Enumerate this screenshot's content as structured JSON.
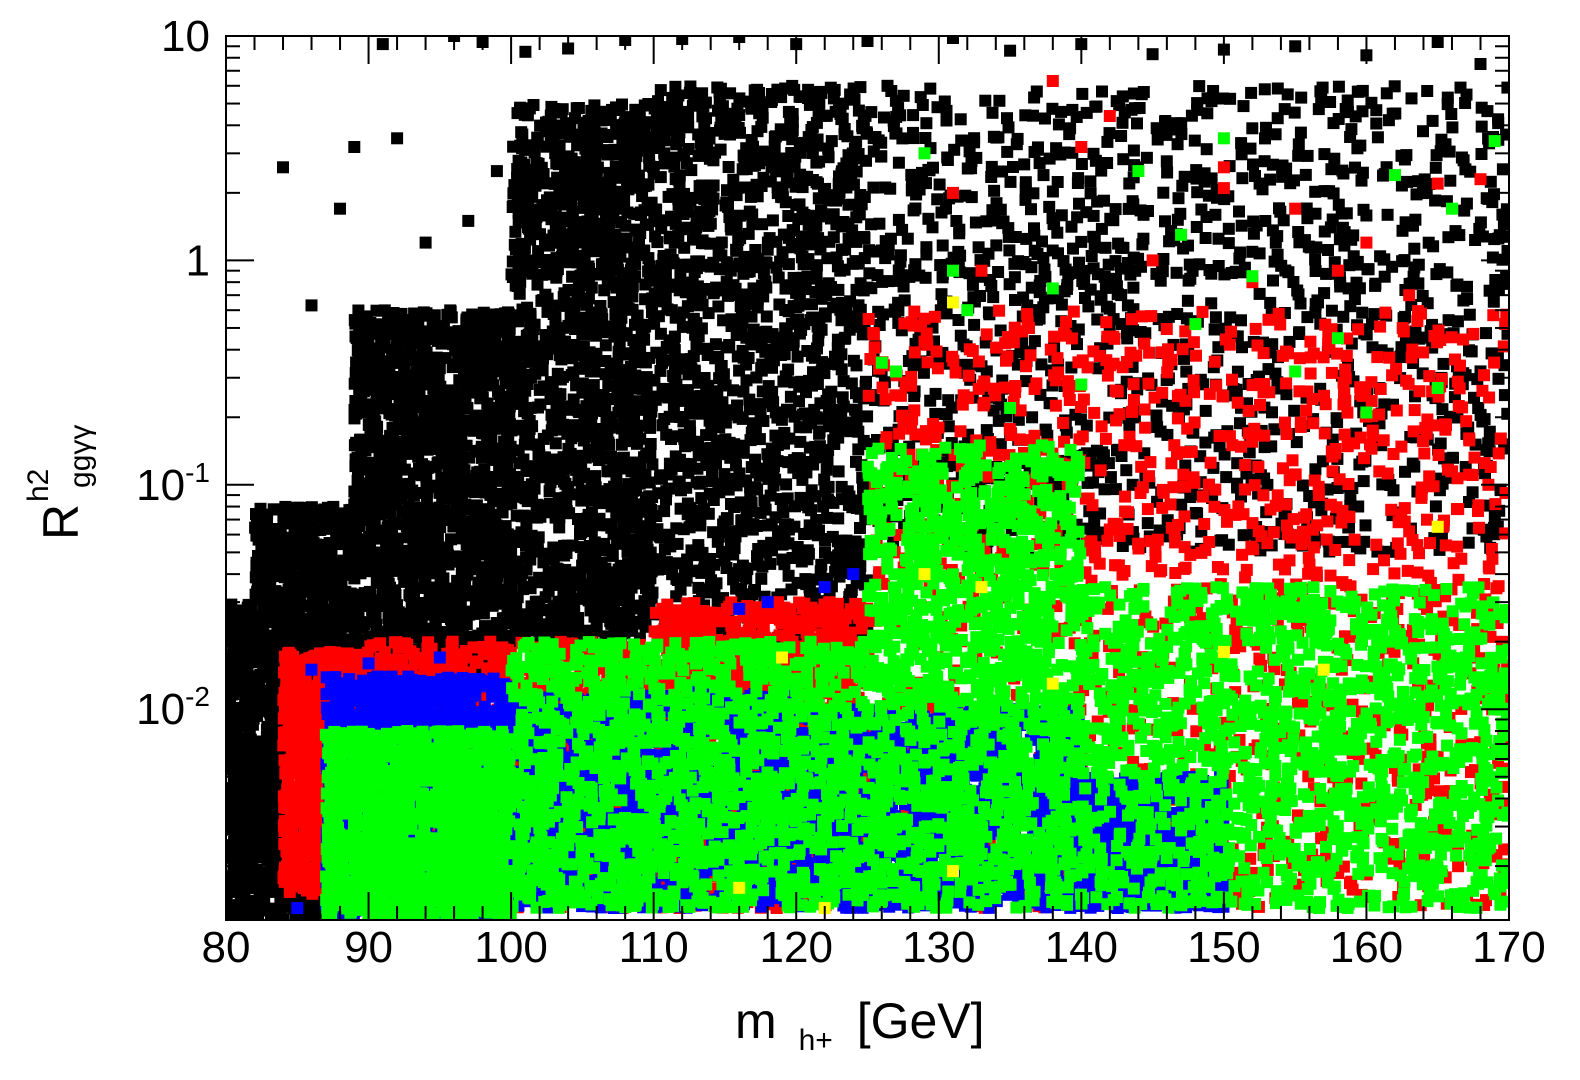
{
  "chart_data": {
    "type": "scatter",
    "title": "",
    "xlabel": {
      "main": "m",
      "sub": "h+",
      "unit": "[GeV]"
    },
    "ylabel": {
      "main": "R",
      "sup": "h2",
      "sub": "ggγγ"
    },
    "xlim": [
      80,
      170
    ],
    "ylim": [
      0.00115,
      10
    ],
    "yscale": "log",
    "grid": false,
    "legend": "none",
    "x_ticks": [
      80,
      90,
      100,
      110,
      120,
      130,
      140,
      150,
      160,
      170
    ],
    "x_tick_labels": [
      "80",
      "90",
      "100",
      "110",
      "120",
      "130",
      "140",
      "150",
      "160",
      "170"
    ],
    "y_ticks": [
      {
        "value": 10,
        "label": "10",
        "exp": ""
      },
      {
        "value": 1,
        "label": "1",
        "exp": ""
      },
      {
        "value": 0.1,
        "label": "10",
        "exp": "-1"
      },
      {
        "value": 0.01,
        "label": "10",
        "exp": "-2"
      }
    ],
    "series": [
      {
        "color": "#000000",
        "regions": [
          {
            "x": [
              80,
              82
            ],
            "lower": 0.00115,
            "upper": 0.03
          },
          {
            "x": [
              82,
              89
            ],
            "lower": 0.00115,
            "upper": 0.08
          },
          {
            "x": [
              89,
              100
            ],
            "lower": 0.014,
            "upper": 0.6
          },
          {
            "x": [
              100,
              110
            ],
            "lower": 0.02,
            "upper": 5
          },
          {
            "x": [
              110,
              125
            ],
            "lower": 0.02,
            "upper": 6
          },
          {
            "x": [
              125,
              170
            ],
            "lower": 0.05,
            "upper": 6
          }
        ],
        "scatter_points": [
          [
            96,
            10
          ],
          [
            91,
            9.2
          ],
          [
            98,
            9.4
          ],
          [
            84,
            2.6
          ],
          [
            86,
            0.63
          ],
          [
            88,
            1.7
          ],
          [
            89,
            3.2
          ],
          [
            92,
            3.5
          ],
          [
            94,
            1.2
          ],
          [
            97,
            1.5
          ],
          [
            99,
            2.5
          ],
          [
            101,
            8.5
          ],
          [
            104,
            8.8
          ],
          [
            108,
            9.6
          ],
          [
            112,
            9.7
          ],
          [
            116,
            9.9
          ],
          [
            120,
            9.2
          ],
          [
            125,
            9.5
          ],
          [
            131,
            9.8
          ],
          [
            135,
            8.6
          ],
          [
            140,
            9.2
          ],
          [
            145,
            8.3
          ],
          [
            150,
            8.7
          ],
          [
            155,
            9.0
          ],
          [
            160,
            8.2
          ],
          [
            165,
            9.4
          ],
          [
            168,
            7.5
          ]
        ]
      },
      {
        "color": "#ff0000",
        "regions": [
          {
            "x": [
              84,
              90
            ],
            "lower": 0.0015,
            "upper": 0.018
          },
          {
            "x": [
              90,
              110
            ],
            "lower": 0.0013,
            "upper": 0.02
          },
          {
            "x": [
              110,
              125
            ],
            "lower": 0.0013,
            "upper": 0.03
          },
          {
            "x": [
              125,
              170
            ],
            "lower": 0.0013,
            "upper": 0.6
          }
        ],
        "scatter_points": [
          [
            138,
            6.3
          ],
          [
            140,
            3.2
          ],
          [
            142,
            4.4
          ],
          [
            150,
            2.6
          ],
          [
            155,
            1.7
          ],
          [
            160,
            1.2
          ],
          [
            165,
            2.2
          ],
          [
            168,
            2.3
          ],
          [
            131,
            2.0
          ],
          [
            129,
            0.55
          ],
          [
            133,
            0.9
          ],
          [
            145,
            1.0
          ],
          [
            152,
            0.8
          ],
          [
            158,
            0.9
          ],
          [
            163,
            0.7
          ],
          [
            150,
            2.1
          ]
        ]
      },
      {
        "color": "#0000ff",
        "regions": [
          {
            "x": [
              87,
              100
            ],
            "lower": 0.0012,
            "upper": 0.014
          },
          {
            "x": [
              100,
              120
            ],
            "lower": 0.0013,
            "upper": 0.012
          },
          {
            "x": [
              120,
              140
            ],
            "lower": 0.0013,
            "upper": 0.01
          },
          {
            "x": [
              140,
              150
            ],
            "lower": 0.0013,
            "upper": 0.005
          }
        ],
        "scatter_points": [
          [
            85,
            0.0013
          ],
          [
            86,
            0.015
          ],
          [
            90,
            0.016
          ],
          [
            95,
            0.017
          ],
          [
            116,
            0.028
          ],
          [
            118,
            0.03
          ],
          [
            122,
            0.035
          ],
          [
            124,
            0.04
          ]
        ]
      },
      {
        "color": "#00ff00",
        "regions": [
          {
            "x": [
              87,
              100
            ],
            "lower": 0.0012,
            "upper": 0.008
          },
          {
            "x": [
              100,
              125
            ],
            "lower": 0.0013,
            "upper": 0.02
          },
          {
            "x": [
              125,
              140
            ],
            "lower": 0.0013,
            "upper": 0.15
          },
          {
            "x": [
              140,
              170
            ],
            "lower": 0.0013,
            "upper": 0.035
          }
        ],
        "scatter_points": [
          [
            150,
            3.5
          ],
          [
            131,
            0.9
          ],
          [
            132,
            0.6
          ],
          [
            138,
            0.75
          ],
          [
            144,
            2.5
          ],
          [
            147,
            1.3
          ],
          [
            152,
            0.85
          ],
          [
            158,
            0.45
          ],
          [
            162,
            2.4
          ],
          [
            166,
            1.7
          ],
          [
            169,
            3.4
          ],
          [
            126,
            0.35
          ],
          [
            127,
            0.32
          ],
          [
            140,
            0.28
          ],
          [
            155,
            0.32
          ],
          [
            165,
            0.27
          ],
          [
            129,
            3.0
          ],
          [
            135,
            0.22
          ],
          [
            148,
            0.52
          ],
          [
            160,
            0.21
          ]
        ]
      },
      {
        "color": "#ffff00",
        "regions": [],
        "scatter_points": [
          [
            131,
            0.65
          ],
          [
            165,
            0.065
          ],
          [
            129,
            0.04
          ],
          [
            133,
            0.035
          ],
          [
            119,
            0.017
          ],
          [
            138,
            0.013
          ],
          [
            150,
            0.018
          ],
          [
            157,
            0.015
          ],
          [
            131,
            0.0019
          ],
          [
            116,
            0.0016
          ],
          [
            122,
            0.0013
          ]
        ]
      }
    ]
  }
}
